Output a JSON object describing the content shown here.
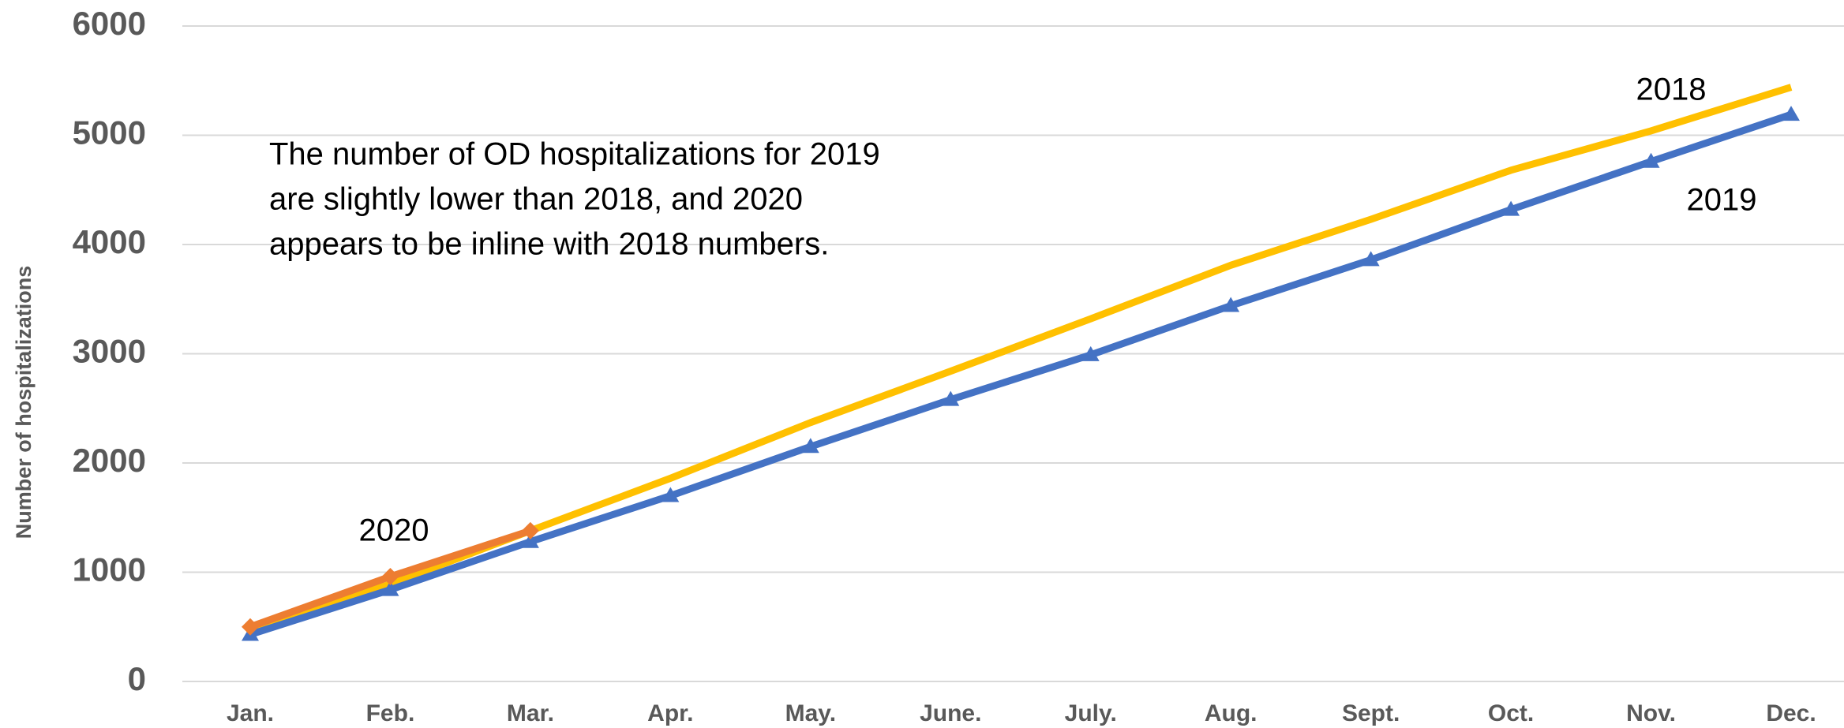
{
  "chart_data": {
    "type": "line",
    "y_label": "Number of hospitalizations",
    "categories": [
      "Jan.",
      "Feb.",
      "Mar.",
      "Apr.",
      "May.",
      "June.",
      "July.",
      "Aug.",
      "Sept.",
      "Oct.",
      "Nov.",
      "Dec."
    ],
    "series": [
      {
        "name": "2018",
        "color": "#ffc000",
        "marker": "none",
        "values": [
          480,
          890,
          1380,
          1860,
          2370,
          2840,
          3320,
          3810,
          4230,
          4680,
          5040,
          5440
        ]
      },
      {
        "name": "2019",
        "color": "#4472c4",
        "marker": "triangle",
        "values": [
          430,
          840,
          1280,
          1700,
          2150,
          2580,
          2990,
          3440,
          3860,
          4320,
          4760,
          5190
        ]
      },
      {
        "name": "2020",
        "color": "#ed7d31",
        "marker": "diamond",
        "values": [
          500,
          960,
          1380,
          null,
          null,
          null,
          null,
          null,
          null,
          null,
          null,
          null
        ]
      }
    ],
    "annotations": [
      "The number of OD hospitalizations for 2019",
      "are slightly lower than 2018, and 2020",
      "appears to be inline with 2018 numbers."
    ],
    "ylim": [
      0,
      6000
    ],
    "yticks": [
      0,
      1000,
      2000,
      3000,
      4000,
      5000,
      6000
    ],
    "grid": true
  }
}
